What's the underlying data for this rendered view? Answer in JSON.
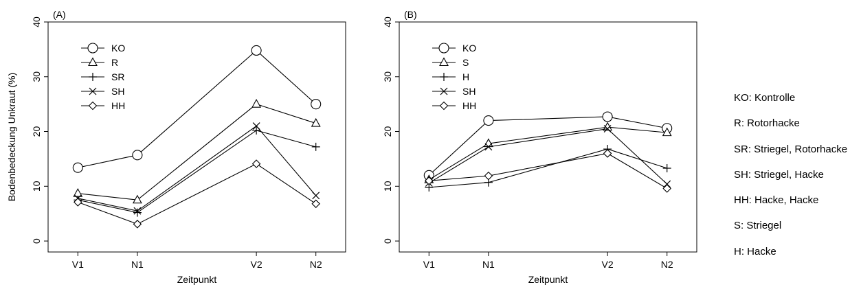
{
  "charts": [
    {
      "panel_label": "(A)",
      "xlabel": "Zeitpunkt",
      "ylabel": "Bodenbedeckung Unkraut (%)",
      "y_ticks": [
        0,
        10,
        20,
        30,
        40
      ],
      "x_ticks": [
        "V1",
        "N1",
        "V2",
        "N2"
      ],
      "legend": [
        "KO",
        "R",
        "SR",
        "SH",
        "HH"
      ]
    },
    {
      "panel_label": "(B)",
      "xlabel": "Zeitpunkt",
      "ylabel": "",
      "y_ticks": [
        0,
        10,
        20,
        30,
        40
      ],
      "x_ticks": [
        "V1",
        "N1",
        "V2",
        "N2"
      ],
      "legend": [
        "KO",
        "S",
        "H",
        "SH",
        "HH"
      ]
    }
  ],
  "abbreviations": [
    "KO: Kontrolle",
    "R: Rotorhacke",
    "SR: Striegel, Rotorhacke",
    "SH: Striegel, Hacke",
    "HH: Hacke, Hacke",
    "S: Striegel",
    "H: Hacke"
  ],
  "chart_data": [
    {
      "type": "line",
      "title": "(A)",
      "xlabel": "Zeitpunkt",
      "ylabel": "Bodenbedeckung Unkraut (%)",
      "x": [
        1,
        2,
        4,
        5
      ],
      "categories": [
        "V1",
        "N1",
        "V2",
        "N2"
      ],
      "xlim": [
        0.5,
        5.5
      ],
      "ylim": [
        -2,
        40
      ],
      "grid": false,
      "legend_position": "top-left",
      "series": [
        {
          "name": "KO",
          "marker": "circle",
          "values": [
            13.4,
            15.7,
            34.8,
            25.0
          ]
        },
        {
          "name": "R",
          "marker": "triangle",
          "values": [
            8.7,
            7.5,
            25.0,
            21.5
          ]
        },
        {
          "name": "SR",
          "marker": "plus",
          "values": [
            7.5,
            5.2,
            20.2,
            17.2
          ]
        },
        {
          "name": "SH",
          "marker": "x",
          "values": [
            7.8,
            5.5,
            21.0,
            8.3
          ]
        },
        {
          "name": "HH",
          "marker": "diamond",
          "values": [
            7.1,
            3.1,
            14.1,
            6.8
          ]
        }
      ]
    },
    {
      "type": "line",
      "title": "(B)",
      "xlabel": "Zeitpunkt",
      "ylabel": "",
      "x": [
        1,
        2,
        4,
        5
      ],
      "categories": [
        "V1",
        "N1",
        "V2",
        "N2"
      ],
      "xlim": [
        0.5,
        5.5
      ],
      "ylim": [
        -2,
        40
      ],
      "grid": false,
      "legend_position": "top-left",
      "series": [
        {
          "name": "KO",
          "marker": "circle",
          "values": [
            12.0,
            22.0,
            22.7,
            20.6
          ]
        },
        {
          "name": "S",
          "marker": "triangle",
          "values": [
            11.2,
            17.8,
            20.8,
            19.8
          ]
        },
        {
          "name": "H",
          "marker": "plus",
          "values": [
            9.8,
            10.7,
            16.8,
            13.3
          ]
        },
        {
          "name": "SH",
          "marker": "x",
          "values": [
            10.6,
            17.2,
            20.5,
            10.4
          ]
        },
        {
          "name": "HH",
          "marker": "diamond",
          "values": [
            11.0,
            11.9,
            16.0,
            9.6
          ]
        }
      ]
    }
  ]
}
